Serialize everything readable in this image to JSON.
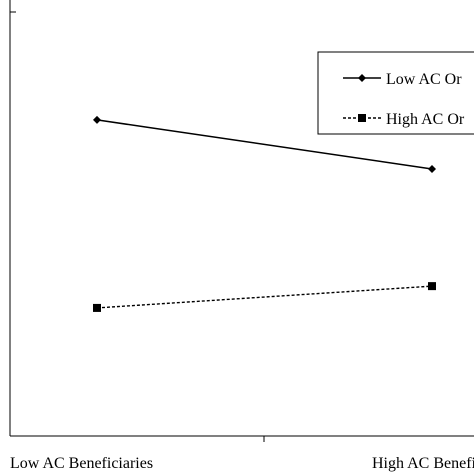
{
  "chart_data": {
    "type": "line",
    "categories": [
      "Low AC Beneficiaries",
      "High AC Beneficiaries"
    ],
    "series": [
      {
        "name": "Low AC Or",
        "values": [
          5.8,
          4.9
        ],
        "style": "solid",
        "marker": "diamond"
      },
      {
        "name": "High AC Or",
        "values": [
          2.35,
          2.75
        ],
        "style": "dashed",
        "marker": "square"
      }
    ],
    "ylim": [
      0,
      8
    ],
    "grid": false,
    "legend_position": "top-right",
    "line_color": "#000000"
  }
}
